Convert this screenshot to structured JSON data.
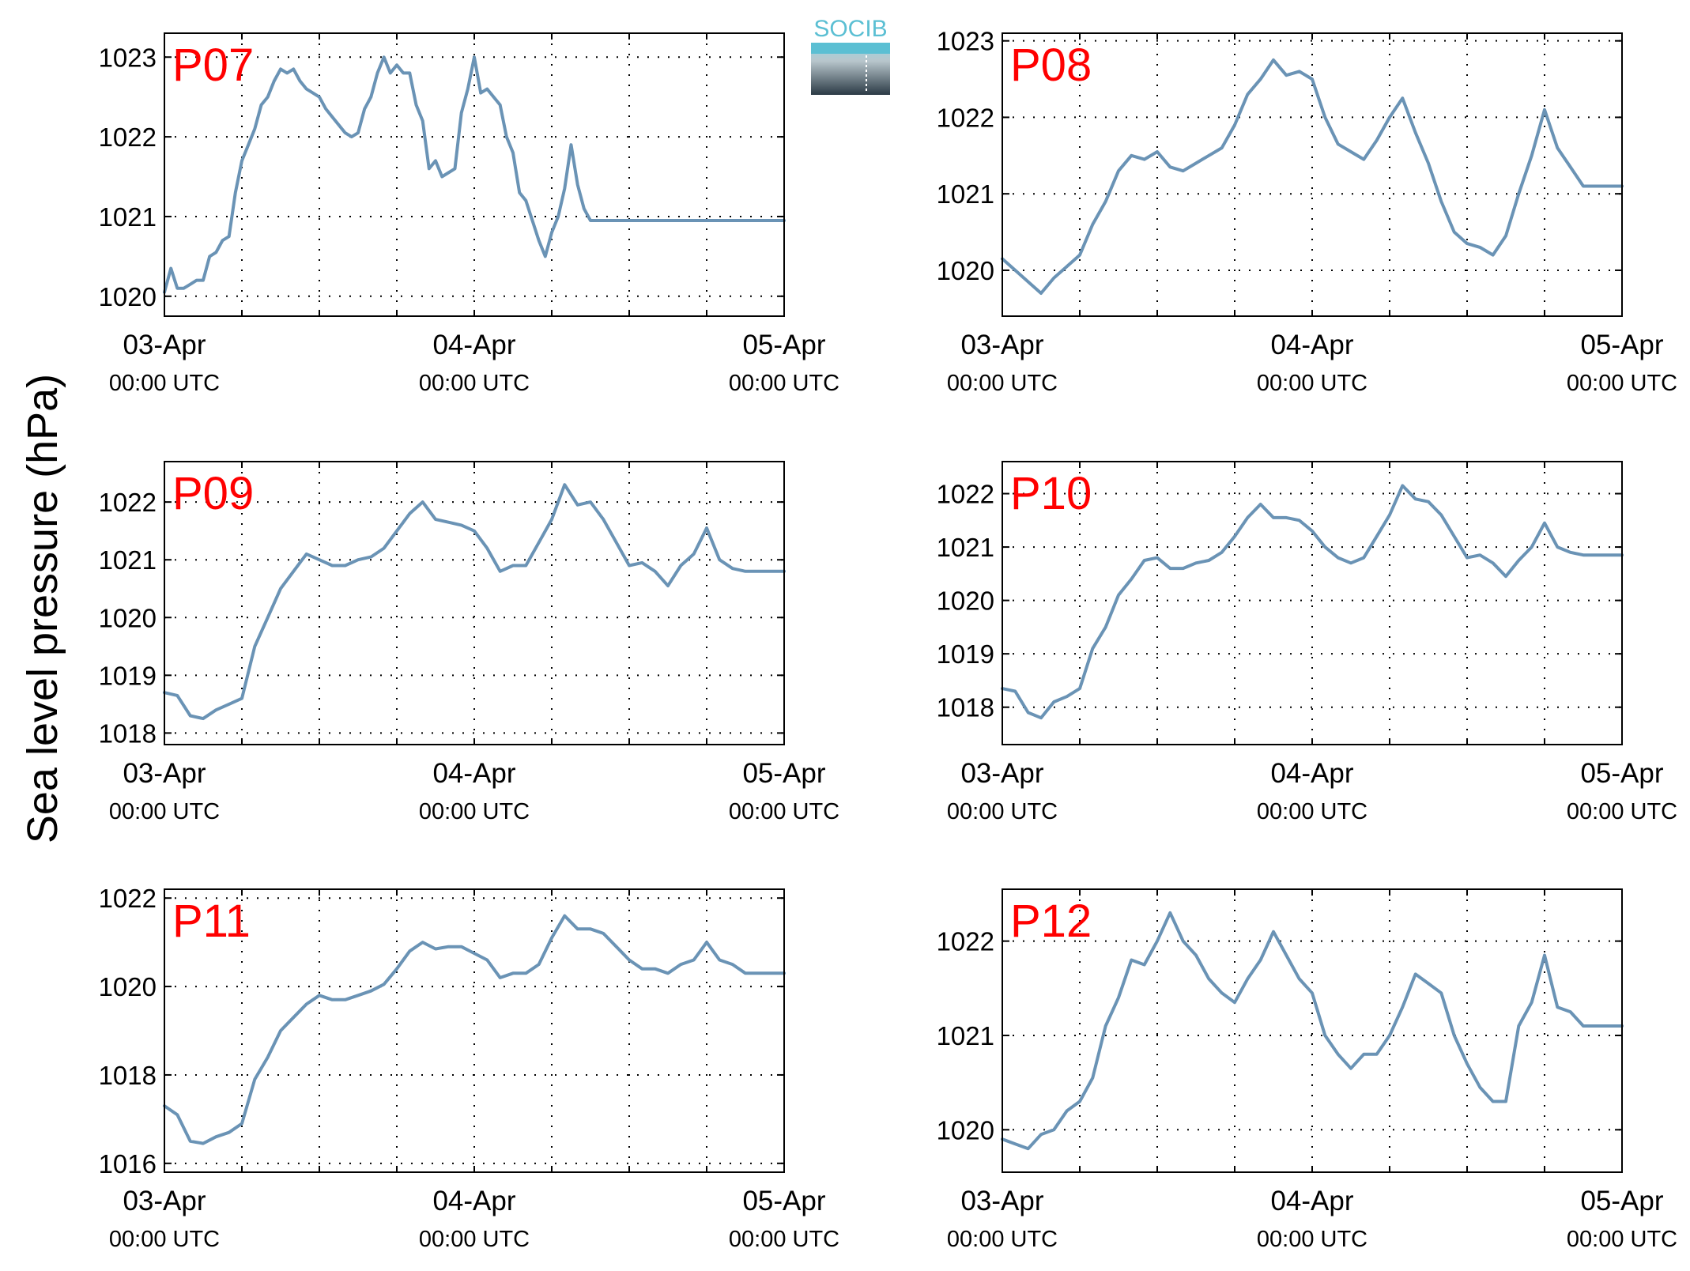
{
  "ylabel": "Sea level pressure (hPa)",
  "logo": {
    "text": "SOCIB"
  },
  "colors": {
    "line": "#6a93b5",
    "title": "#ff0000",
    "grid": "#000000",
    "logo_top": "#5bbfd3",
    "logo_bottom": "#2b3a45"
  },
  "chart_data": [
    {
      "type": "line",
      "title": "P07",
      "xlabel": "",
      "ylabel": "Sea level pressure (hPa)",
      "xlim": [
        0,
        48
      ],
      "ylim": [
        1019.75,
        1023.3
      ],
      "yticks": [
        1020,
        1021,
        1022,
        1023
      ],
      "ytick_labels": [
        "1020",
        "1021",
        "1022",
        "1023"
      ],
      "xticks": [
        0,
        24,
        48
      ],
      "xtick_dates": [
        "03-Apr",
        "04-Apr",
        "05-Apr"
      ],
      "xtick_times": [
        "00:00 UTC",
        "00:00 UTC",
        "00:00 UTC"
      ],
      "grid": true,
      "x": [
        0,
        0.5,
        1,
        1.5,
        2,
        2.5,
        3,
        3.5,
        4,
        4.5,
        5,
        5.5,
        6,
        6.5,
        7,
        7.5,
        8,
        8.5,
        9,
        9.5,
        10,
        10.5,
        11,
        11.5,
        12,
        12.5,
        13,
        13.5,
        14,
        14.5,
        15,
        15.5,
        16,
        16.5,
        17,
        17.5,
        18,
        18.5,
        19,
        19.5,
        20,
        20.5,
        21,
        21.5,
        22,
        22.5,
        23,
        23.5,
        24,
        24.5,
        25,
        25.5,
        26,
        26.5,
        27,
        27.5,
        28,
        28.5,
        29,
        29.5,
        30,
        30.5,
        31,
        31.5,
        32,
        32.5,
        33,
        33.5,
        34,
        34.5,
        35,
        35.5,
        36,
        36.5,
        37,
        37.5,
        38,
        38.5,
        39,
        39.5,
        40,
        40.5,
        41,
        41.5,
        42,
        42.5,
        43,
        43.5,
        44,
        44.5,
        45,
        45.5,
        46,
        46.5,
        47,
        47.5,
        48
      ],
      "series": [
        {
          "values": [
            1020.05,
            1020.35,
            1020.1,
            1020.1,
            1020.15,
            1020.2,
            1020.2,
            1020.5,
            1020.55,
            1020.7,
            1020.75,
            1021.3,
            1021.7,
            1021.9,
            1022.1,
            1022.4,
            1022.5,
            1022.7,
            1022.85,
            1022.8,
            1022.85,
            1022.7,
            1022.6,
            1022.55,
            1022.5,
            1022.35,
            1022.25,
            1022.15,
            1022.05,
            1022.0,
            1022.05,
            1022.35,
            1022.5,
            1022.8,
            1023.0,
            1022.8,
            1022.9,
            1022.8,
            1022.8,
            1022.4,
            1022.2,
            1021.6,
            1021.7,
            1021.5,
            1021.55,
            1021.6,
            1022.3,
            1022.6,
            1023.0,
            1022.55,
            1022.6,
            1022.5,
            1022.4,
            1022.0,
            1021.8,
            1021.3,
            1021.2,
            1020.95,
            1020.7,
            1020.5,
            1020.8,
            1021.0,
            1021.35,
            1021.9,
            1021.4,
            1021.1,
            1020.95,
            1020.95,
            1020.95,
            1020.95,
            1020.95,
            1020.95,
            1020.95,
            1020.95,
            1020.95,
            1020.95,
            1020.95,
            1020.95,
            1020.95,
            1020.95,
            1020.95,
            1020.95,
            1020.95,
            1020.95,
            1020.95,
            1020.95,
            1020.95,
            1020.95,
            1020.95,
            1020.95,
            1020.95,
            1020.95,
            1020.95,
            1020.95,
            1020.95,
            1020.95,
            1020.95
          ]
        }
      ]
    },
    {
      "type": "line",
      "title": "P08",
      "xlabel": "",
      "ylabel": "Sea level pressure (hPa)",
      "xlim": [
        0,
        48
      ],
      "ylim": [
        1019.4,
        1023.1
      ],
      "yticks": [
        1020,
        1021,
        1022,
        1023
      ],
      "ytick_labels": [
        "1020",
        "1021",
        "1022",
        "1023"
      ],
      "xticks": [
        0,
        24,
        48
      ],
      "xtick_dates": [
        "03-Apr",
        "04-Apr",
        "05-Apr"
      ],
      "xtick_times": [
        "00:00 UTC",
        "00:00 UTC",
        "00:00 UTC"
      ],
      "grid": true,
      "x": [
        0,
        1,
        2,
        3,
        4,
        5,
        6,
        7,
        8,
        9,
        10,
        11,
        12,
        13,
        14,
        15,
        16,
        17,
        18,
        19,
        20,
        21,
        22,
        23,
        24,
        25,
        26,
        27,
        28,
        29,
        30,
        31,
        32,
        33,
        34,
        35,
        36,
        37,
        38,
        39,
        40,
        41,
        42,
        43,
        44,
        45,
        46,
        47,
        48
      ],
      "series": [
        {
          "values": [
            1020.15,
            1020.0,
            1019.85,
            1019.7,
            1019.9,
            1020.05,
            1020.2,
            1020.6,
            1020.9,
            1021.3,
            1021.5,
            1021.45,
            1021.55,
            1021.35,
            1021.3,
            1021.4,
            1021.5,
            1021.6,
            1021.9,
            1022.3,
            1022.5,
            1022.75,
            1022.55,
            1022.6,
            1022.5,
            1022.0,
            1021.65,
            1021.55,
            1021.45,
            1021.7,
            1022.0,
            1022.25,
            1021.8,
            1021.4,
            1020.9,
            1020.5,
            1020.35,
            1020.3,
            1020.2,
            1020.45,
            1021.0,
            1021.5,
            1022.1,
            1021.6,
            1021.35,
            1021.1,
            1021.1,
            1021.1,
            1021.1
          ]
        }
      ]
    },
    {
      "type": "line",
      "title": "P09",
      "xlabel": "",
      "ylabel": "Sea level pressure (hPa)",
      "xlim": [
        0,
        48
      ],
      "ylim": [
        1017.8,
        1022.7
      ],
      "yticks": [
        1018,
        1019,
        1020,
        1021,
        1022
      ],
      "ytick_labels": [
        "1018",
        "1019",
        "1020",
        "1021",
        "1022"
      ],
      "xticks": [
        0,
        24,
        48
      ],
      "xtick_dates": [
        "03-Apr",
        "04-Apr",
        "05-Apr"
      ],
      "xtick_times": [
        "00:00 UTC",
        "00:00 UTC",
        "00:00 UTC"
      ],
      "grid": true,
      "x": [
        0,
        1,
        2,
        3,
        4,
        5,
        6,
        7,
        8,
        9,
        10,
        11,
        12,
        13,
        14,
        15,
        16,
        17,
        18,
        19,
        20,
        21,
        22,
        23,
        24,
        25,
        26,
        27,
        28,
        29,
        30,
        31,
        32,
        33,
        34,
        35,
        36,
        37,
        38,
        39,
        40,
        41,
        42,
        43,
        44,
        45,
        46,
        47,
        48
      ],
      "series": [
        {
          "values": [
            1018.7,
            1018.65,
            1018.3,
            1018.25,
            1018.4,
            1018.5,
            1018.6,
            1019.5,
            1020.0,
            1020.5,
            1020.8,
            1021.1,
            1021.0,
            1020.9,
            1020.9,
            1021.0,
            1021.05,
            1021.2,
            1021.5,
            1021.8,
            1022.0,
            1021.7,
            1021.65,
            1021.6,
            1021.5,
            1021.2,
            1020.8,
            1020.9,
            1020.9,
            1021.3,
            1021.7,
            1022.3,
            1021.95,
            1022.0,
            1021.7,
            1021.3,
            1020.9,
            1020.95,
            1020.8,
            1020.55,
            1020.9,
            1021.1,
            1021.55,
            1021.0,
            1020.85,
            1020.8,
            1020.8,
            1020.8,
            1020.8
          ]
        }
      ]
    },
    {
      "type": "line",
      "title": "P10",
      "xlabel": "",
      "ylabel": "Sea level pressure (hPa)",
      "xlim": [
        0,
        48
      ],
      "ylim": [
        1017.3,
        1022.6
      ],
      "yticks": [
        1018,
        1019,
        1020,
        1021,
        1022
      ],
      "ytick_labels": [
        "1018",
        "1019",
        "1020",
        "1021",
        "1022"
      ],
      "xticks": [
        0,
        24,
        48
      ],
      "xtick_dates": [
        "03-Apr",
        "04-Apr",
        "05-Apr"
      ],
      "xtick_times": [
        "00:00 UTC",
        "00:00 UTC",
        "00:00 UTC"
      ],
      "grid": true,
      "x": [
        0,
        1,
        2,
        3,
        4,
        5,
        6,
        7,
        8,
        9,
        10,
        11,
        12,
        13,
        14,
        15,
        16,
        17,
        18,
        19,
        20,
        21,
        22,
        23,
        24,
        25,
        26,
        27,
        28,
        29,
        30,
        31,
        32,
        33,
        34,
        35,
        36,
        37,
        38,
        39,
        40,
        41,
        42,
        43,
        44,
        45,
        46,
        47,
        48
      ],
      "series": [
        {
          "values": [
            1018.35,
            1018.3,
            1017.9,
            1017.8,
            1018.1,
            1018.2,
            1018.35,
            1019.1,
            1019.5,
            1020.1,
            1020.4,
            1020.75,
            1020.8,
            1020.6,
            1020.6,
            1020.7,
            1020.75,
            1020.9,
            1021.2,
            1021.55,
            1021.8,
            1021.55,
            1021.55,
            1021.5,
            1021.3,
            1021.0,
            1020.8,
            1020.7,
            1020.8,
            1021.2,
            1021.6,
            1022.15,
            1021.9,
            1021.85,
            1021.6,
            1021.2,
            1020.8,
            1020.85,
            1020.7,
            1020.45,
            1020.75,
            1021.0,
            1021.45,
            1021.0,
            1020.9,
            1020.85,
            1020.85,
            1020.85,
            1020.85
          ]
        }
      ]
    },
    {
      "type": "line",
      "title": "P11",
      "xlabel": "",
      "ylabel": "Sea level pressure (hPa)",
      "xlim": [
        0,
        48
      ],
      "ylim": [
        1015.8,
        1022.2
      ],
      "yticks": [
        1016,
        1018,
        1020,
        1022
      ],
      "ytick_labels": [
        "1016",
        "1018",
        "1020",
        "1022"
      ],
      "xticks": [
        0,
        24,
        48
      ],
      "xtick_dates": [
        "03-Apr",
        "04-Apr",
        "05-Apr"
      ],
      "xtick_times": [
        "00:00 UTC",
        "00:00 UTC",
        "00:00 UTC"
      ],
      "grid": true,
      "x": [
        0,
        1,
        2,
        3,
        4,
        5,
        6,
        7,
        8,
        9,
        10,
        11,
        12,
        13,
        14,
        15,
        16,
        17,
        18,
        19,
        20,
        21,
        22,
        23,
        24,
        25,
        26,
        27,
        28,
        29,
        30,
        31,
        32,
        33,
        34,
        35,
        36,
        37,
        38,
        39,
        40,
        41,
        42,
        43,
        44,
        45,
        46,
        47,
        48
      ],
      "series": [
        {
          "values": [
            1017.3,
            1017.1,
            1016.5,
            1016.45,
            1016.6,
            1016.7,
            1016.9,
            1017.9,
            1018.4,
            1019.0,
            1019.3,
            1019.6,
            1019.8,
            1019.7,
            1019.7,
            1019.8,
            1019.9,
            1020.05,
            1020.4,
            1020.8,
            1021.0,
            1020.85,
            1020.9,
            1020.9,
            1020.75,
            1020.6,
            1020.2,
            1020.3,
            1020.3,
            1020.5,
            1021.1,
            1021.6,
            1021.3,
            1021.3,
            1021.2,
            1020.9,
            1020.6,
            1020.4,
            1020.4,
            1020.3,
            1020.5,
            1020.6,
            1021.0,
            1020.6,
            1020.5,
            1020.3,
            1020.3,
            1020.3,
            1020.3
          ]
        }
      ]
    },
    {
      "type": "line",
      "title": "P12",
      "xlabel": "",
      "ylabel": "Sea level pressure (hPa)",
      "xlim": [
        0,
        48
      ],
      "ylim": [
        1019.55,
        1022.55
      ],
      "yticks": [
        1020,
        1021,
        1022
      ],
      "ytick_labels": [
        "1020",
        "1021",
        "1022"
      ],
      "xticks": [
        0,
        24,
        48
      ],
      "xtick_dates": [
        "03-Apr",
        "04-Apr",
        "05-Apr"
      ],
      "xtick_times": [
        "00:00 UTC",
        "00:00 UTC",
        "00:00 UTC"
      ],
      "grid": true,
      "x": [
        0,
        1,
        2,
        3,
        4,
        5,
        6,
        7,
        8,
        9,
        10,
        11,
        12,
        13,
        14,
        15,
        16,
        17,
        18,
        19,
        20,
        21,
        22,
        23,
        24,
        25,
        26,
        27,
        28,
        29,
        30,
        31,
        32,
        33,
        34,
        35,
        36,
        37,
        38,
        39,
        40,
        41,
        42,
        43,
        44,
        45,
        46,
        47,
        48
      ],
      "series": [
        {
          "values": [
            1019.9,
            1019.85,
            1019.8,
            1019.95,
            1020.0,
            1020.2,
            1020.3,
            1020.55,
            1021.1,
            1021.4,
            1021.8,
            1021.75,
            1022.0,
            1022.3,
            1022.0,
            1021.85,
            1021.6,
            1021.45,
            1021.35,
            1021.6,
            1021.8,
            1022.1,
            1021.85,
            1021.6,
            1021.45,
            1021.0,
            1020.8,
            1020.65,
            1020.8,
            1020.8,
            1021.0,
            1021.3,
            1021.65,
            1021.55,
            1021.45,
            1021.0,
            1020.7,
            1020.45,
            1020.3,
            1020.3,
            1021.1,
            1021.35,
            1021.85,
            1021.3,
            1021.25,
            1021.1,
            1021.1,
            1021.1,
            1021.1
          ]
        }
      ]
    }
  ]
}
